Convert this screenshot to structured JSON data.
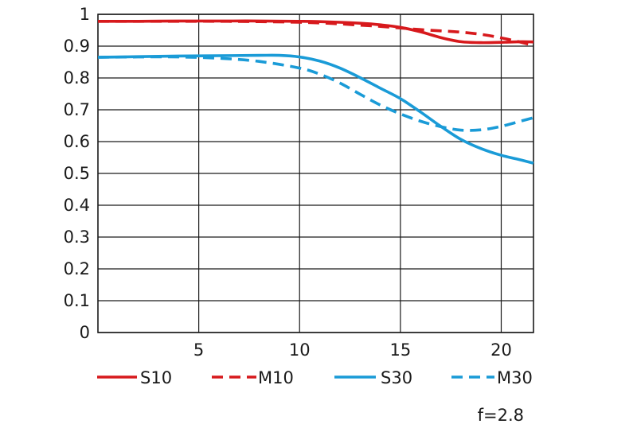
{
  "chart_data": {
    "type": "line",
    "title": "",
    "xlabel": "",
    "ylabel": "",
    "xlim": [
      0,
      21.6
    ],
    "ylim": [
      0,
      1
    ],
    "x_ticks": [
      "5",
      "10",
      "15",
      "20"
    ],
    "y_ticks": [
      "0",
      "0.1",
      "0.2",
      "0.3",
      "0.4",
      "0.5",
      "0.6",
      "0.7",
      "0.8",
      "0.9",
      "1"
    ],
    "grid": true,
    "legend_position": "bottom",
    "note": "f=2.8",
    "series": [
      {
        "name": "S10",
        "color": "#d7191c",
        "dash": "solid",
        "points": [
          [
            0,
            0.978
          ],
          [
            2,
            0.978
          ],
          [
            4,
            0.979
          ],
          [
            6,
            0.979
          ],
          [
            8,
            0.979
          ],
          [
            10,
            0.978
          ],
          [
            11,
            0.977
          ],
          [
            12,
            0.975
          ],
          [
            13,
            0.972
          ],
          [
            14,
            0.967
          ],
          [
            15,
            0.959
          ],
          [
            16,
            0.945
          ],
          [
            17,
            0.927
          ],
          [
            18,
            0.914
          ],
          [
            19,
            0.911
          ],
          [
            20,
            0.912
          ],
          [
            21,
            0.914
          ],
          [
            21.6,
            0.913
          ]
        ]
      },
      {
        "name": "M10",
        "color": "#d7191c",
        "dash": "dashed",
        "points": [
          [
            0,
            0.978
          ],
          [
            2,
            0.978
          ],
          [
            4,
            0.978
          ],
          [
            6,
            0.978
          ],
          [
            8,
            0.977
          ],
          [
            10,
            0.975
          ],
          [
            11,
            0.973
          ],
          [
            12,
            0.97
          ],
          [
            13,
            0.966
          ],
          [
            14,
            0.962
          ],
          [
            15,
            0.957
          ],
          [
            16,
            0.952
          ],
          [
            17,
            0.948
          ],
          [
            18,
            0.944
          ],
          [
            19,
            0.937
          ],
          [
            20,
            0.926
          ],
          [
            21,
            0.912
          ],
          [
            21.6,
            0.902
          ]
        ]
      },
      {
        "name": "S30",
        "color": "#1a9bd7",
        "dash": "solid",
        "points": [
          [
            0,
            0.865
          ],
          [
            2,
            0.867
          ],
          [
            4,
            0.869
          ],
          [
            6,
            0.87
          ],
          [
            8,
            0.871
          ],
          [
            9,
            0.871
          ],
          [
            10,
            0.866
          ],
          [
            11,
            0.853
          ],
          [
            12,
            0.831
          ],
          [
            13,
            0.801
          ],
          [
            14,
            0.768
          ],
          [
            15,
            0.735
          ],
          [
            16,
            0.693
          ],
          [
            17,
            0.648
          ],
          [
            18,
            0.607
          ],
          [
            19,
            0.578
          ],
          [
            20,
            0.557
          ],
          [
            21,
            0.542
          ],
          [
            21.6,
            0.532
          ]
        ]
      },
      {
        "name": "M30",
        "color": "#1a9bd7",
        "dash": "dashed",
        "points": [
          [
            0,
            0.865
          ],
          [
            2,
            0.866
          ],
          [
            4,
            0.866
          ],
          [
            6,
            0.862
          ],
          [
            8,
            0.852
          ],
          [
            10,
            0.831
          ],
          [
            11,
            0.812
          ],
          [
            12,
            0.784
          ],
          [
            13,
            0.749
          ],
          [
            14,
            0.715
          ],
          [
            15,
            0.687
          ],
          [
            16,
            0.664
          ],
          [
            17,
            0.647
          ],
          [
            18,
            0.636
          ],
          [
            19,
            0.637
          ],
          [
            20,
            0.648
          ],
          [
            21,
            0.665
          ],
          [
            21.6,
            0.675
          ]
        ]
      }
    ]
  }
}
